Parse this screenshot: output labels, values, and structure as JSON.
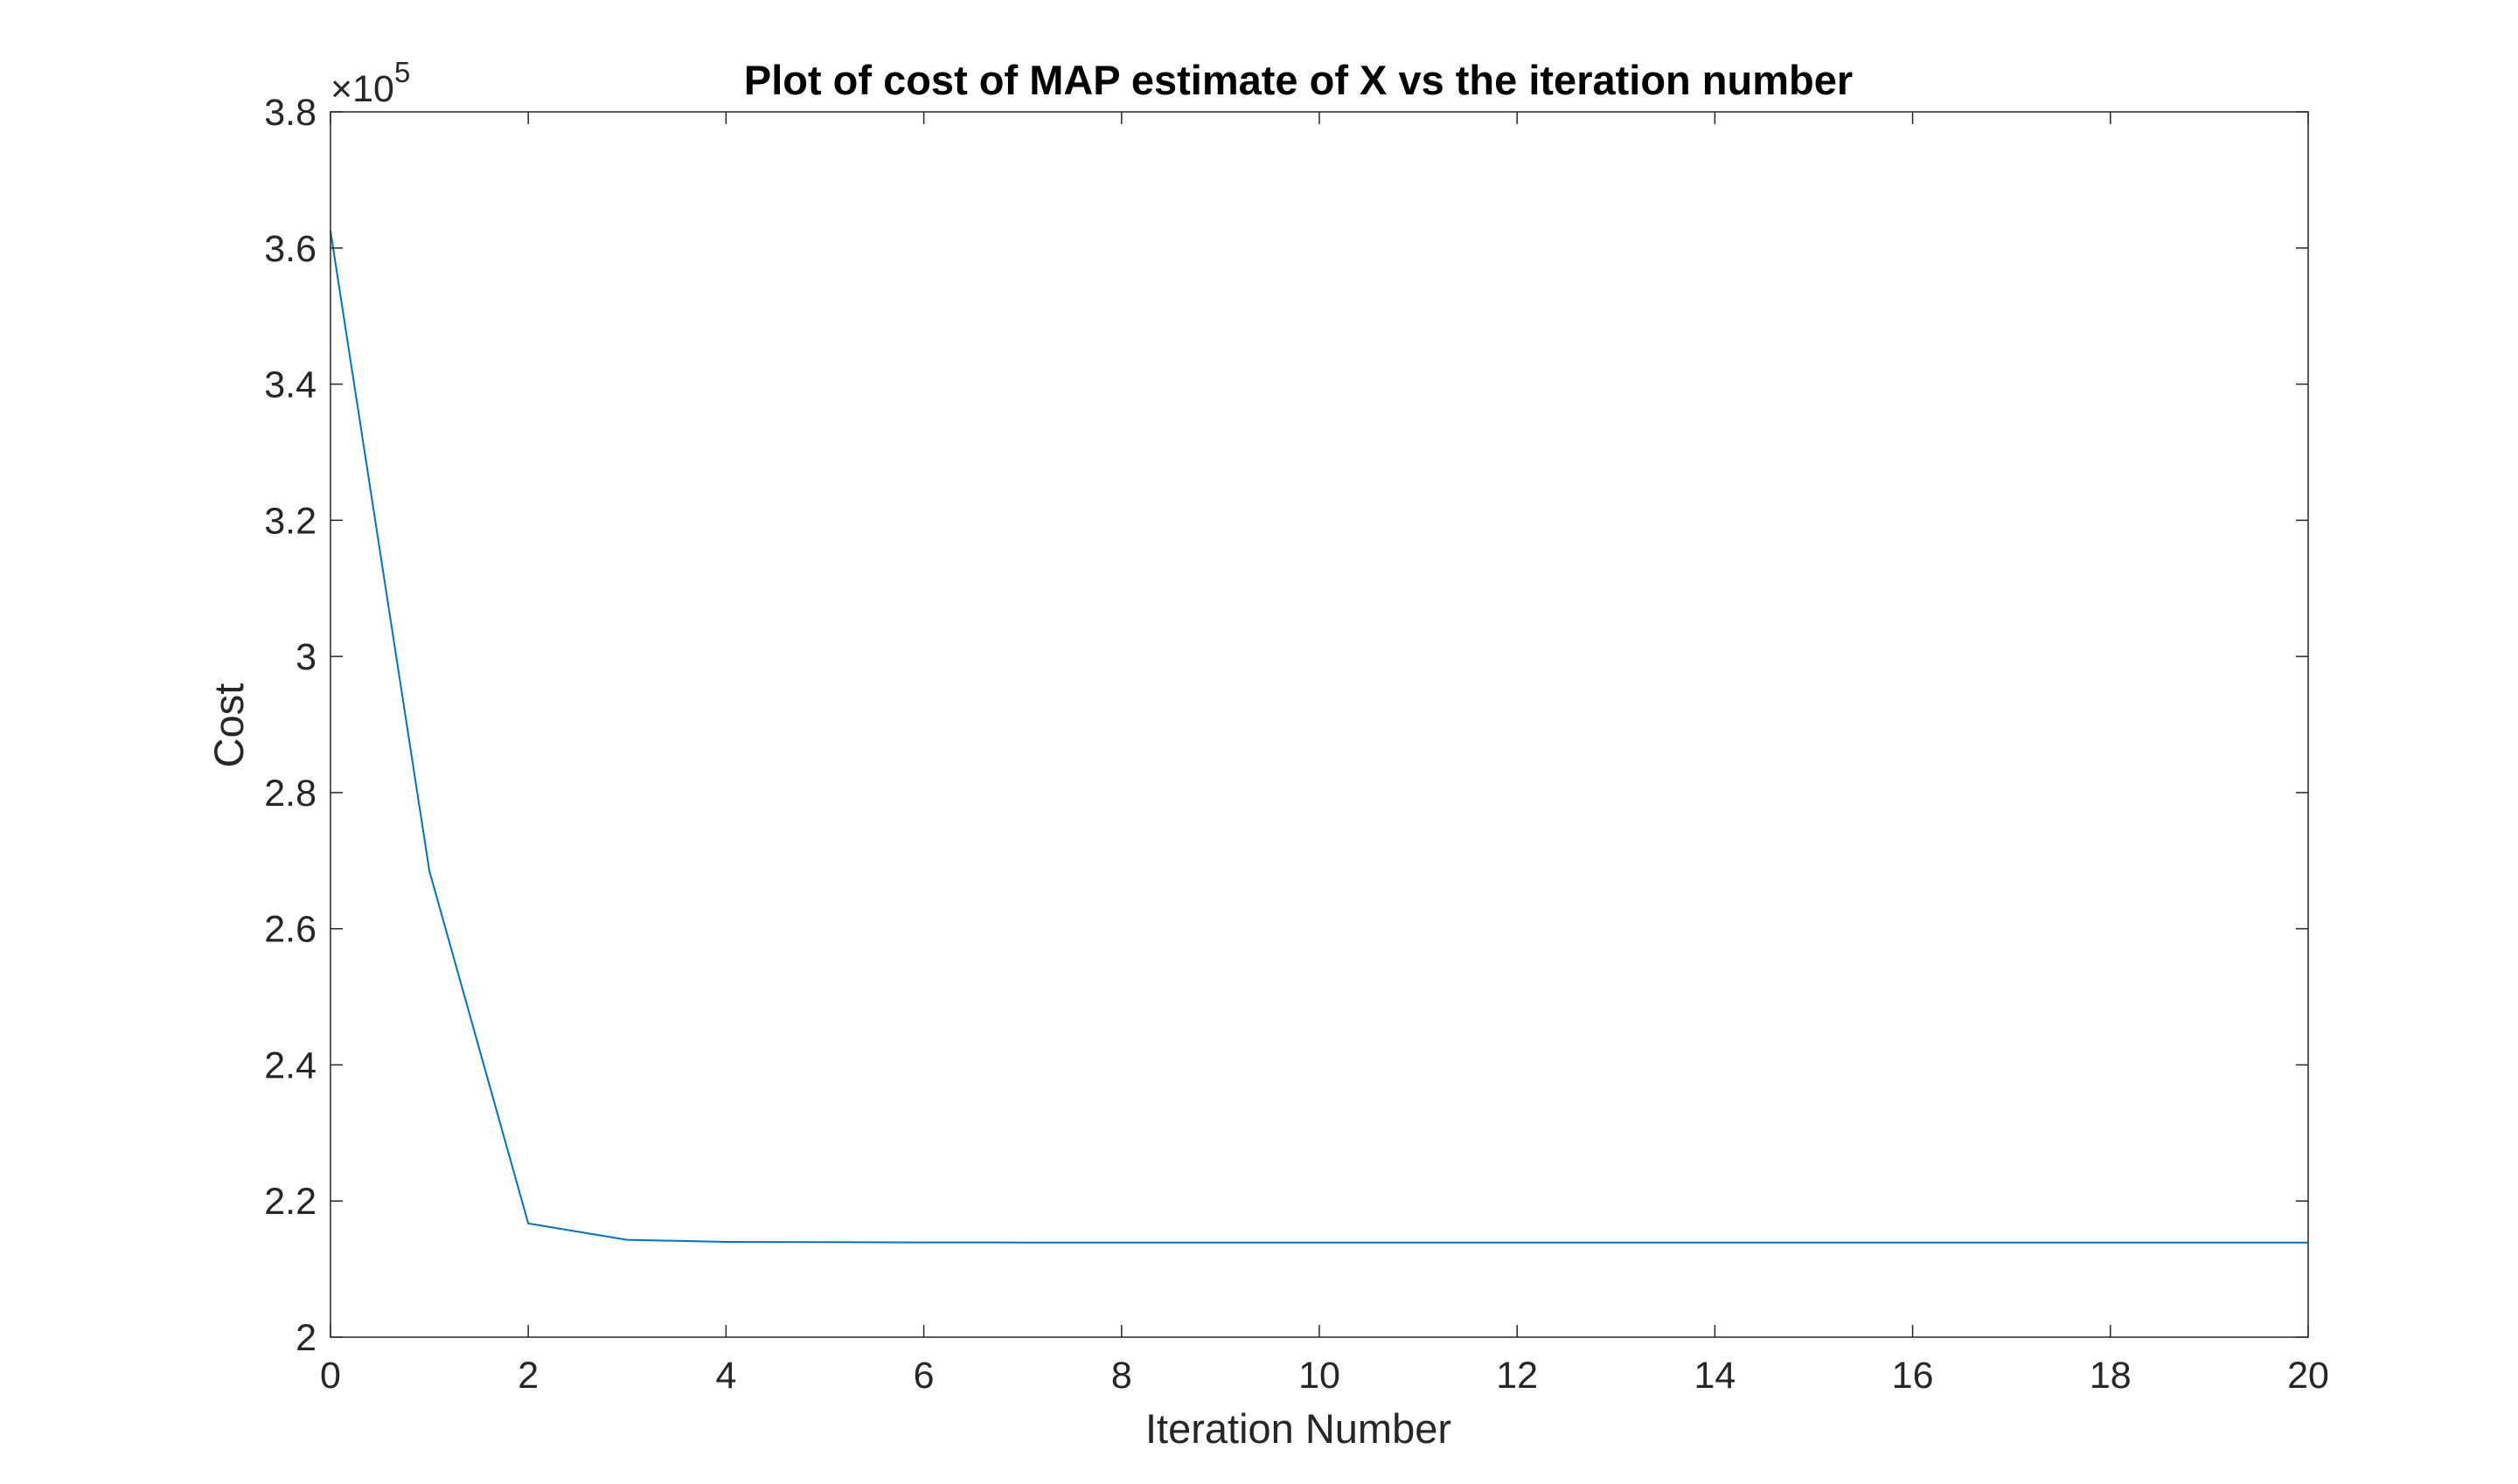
{
  "chart_data": {
    "type": "line",
    "title": "Plot of cost of MAP estimate of X vs the iteration number",
    "xlabel": "Iteration Number",
    "ylabel": "Cost",
    "xlim": [
      0,
      20
    ],
    "ylim": [
      200000,
      380000
    ],
    "x_ticks": [
      0,
      2,
      4,
      6,
      8,
      10,
      12,
      14,
      16,
      18,
      20
    ],
    "x_tick_labels": [
      "0",
      "2",
      "4",
      "6",
      "8",
      "10",
      "12",
      "14",
      "16",
      "18",
      "20"
    ],
    "y_ticks": [
      200000,
      220000,
      240000,
      260000,
      280000,
      300000,
      320000,
      340000,
      360000,
      380000
    ],
    "y_tick_labels": [
      "2",
      "2.2",
      "2.4",
      "2.6",
      "2.8",
      "3",
      "3.2",
      "3.4",
      "3.6",
      "3.8"
    ],
    "y_exponent_base": "×10",
    "y_exponent_power": "5",
    "grid": false,
    "series": [
      {
        "color": "#0072BD",
        "x": [
          0,
          1,
          2,
          3,
          4,
          5,
          6,
          7,
          8,
          9,
          10,
          11,
          12,
          13,
          14,
          15,
          16,
          17,
          18,
          19,
          20
        ],
        "values": [
          362500,
          268500,
          216700,
          214300,
          214000,
          213950,
          213920,
          213910,
          213910,
          213910,
          213910,
          213910,
          213910,
          213910,
          213910,
          213910,
          213910,
          213910,
          213910,
          213910,
          213910
        ]
      }
    ]
  }
}
